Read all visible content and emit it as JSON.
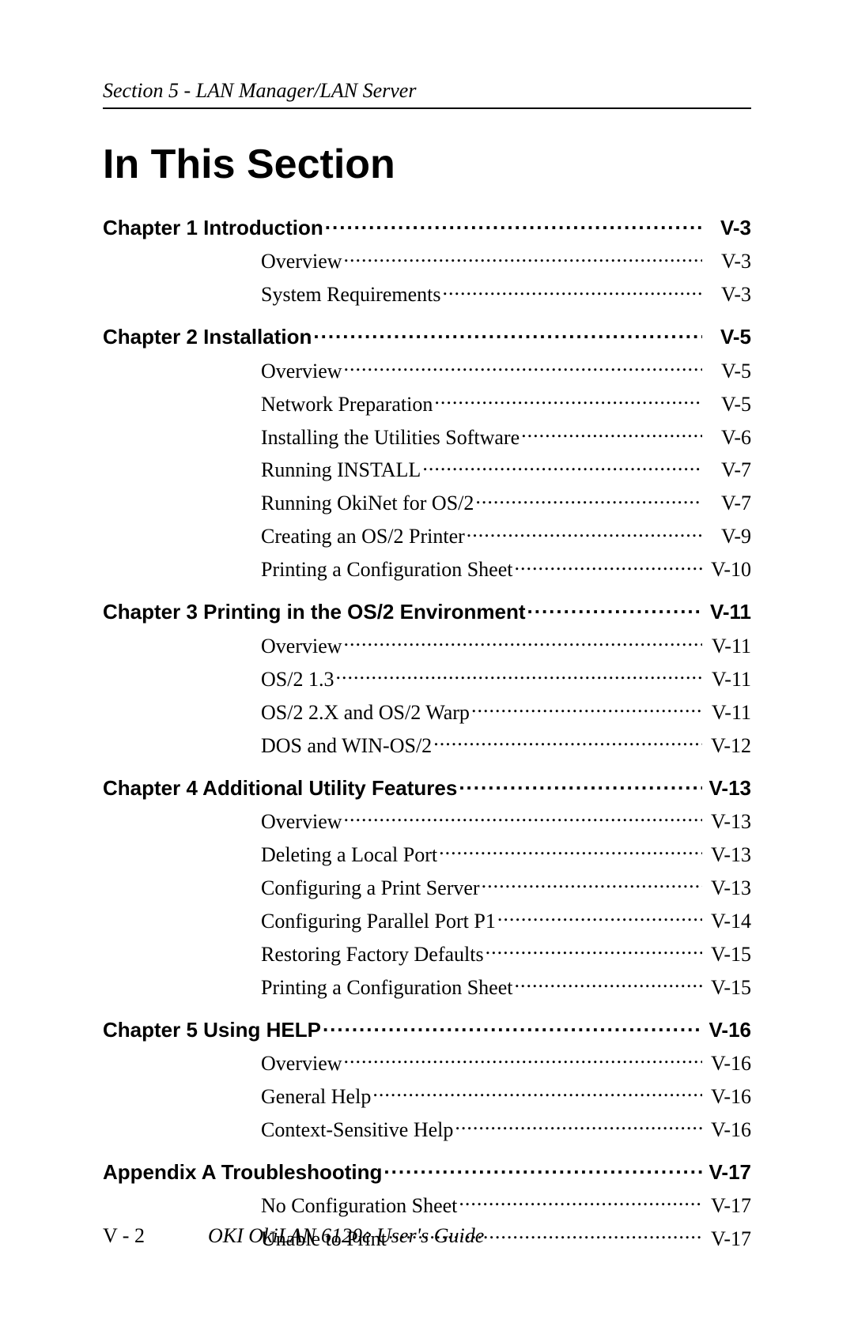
{
  "running_head": "Section 5 - LAN Manager/LAN Server",
  "title": "In This Section",
  "footer_page": "V - 2",
  "footer_guide": "OKI OkiLAN 6120e User's Guide",
  "chapters": [
    {
      "label": "Chapter 1 Introduction",
      "page": "V-3",
      "subs": [
        {
          "label": "Overview",
          "page": "V-3"
        },
        {
          "label": "System Requirements",
          "page": "V-3"
        }
      ]
    },
    {
      "label": "Chapter 2 Installation",
      "page": "V-5",
      "subs": [
        {
          "label": "Overview",
          "page": "V-5"
        },
        {
          "label": "Network Preparation",
          "page": "V-5"
        },
        {
          "label": "Installing the Utilities Software",
          "page": "V-6"
        },
        {
          "label": "Running INSTALL",
          "page": "V-7"
        },
        {
          "label": "Running OkiNet for OS/2",
          "page": "V-7"
        },
        {
          "label": "Creating an OS/2 Printer",
          "page": "V-9"
        },
        {
          "label": "Printing a Configuration Sheet",
          "page": "V-10"
        }
      ]
    },
    {
      "label": "Chapter 3 Printing in the OS/2 Environment",
      "page": "V-11",
      "subs": [
        {
          "label": "Overview",
          "page": "V-11"
        },
        {
          "label": "OS/2 1.3",
          "page": "V-11"
        },
        {
          "label": "OS/2 2.X and OS/2 Warp",
          "page": "V-11"
        },
        {
          "label": "DOS and WIN-OS/2",
          "page": "V-12"
        }
      ]
    },
    {
      "label": "Chapter 4 Additional Utility Features",
      "page": "V-13",
      "subs": [
        {
          "label": "Overview",
          "page": "V-13"
        },
        {
          "label": "Deleting a Local Port",
          "page": "V-13"
        },
        {
          "label": "Configuring a Print Server",
          "page": "V-13"
        },
        {
          "label": "Configuring Parallel Port P1",
          "page": "V-14"
        },
        {
          "label": "Restoring Factory Defaults",
          "page": "V-15"
        },
        {
          "label": "Printing a Configuration Sheet",
          "page": "V-15"
        }
      ]
    },
    {
      "label": "Chapter 5 Using HELP",
      "page": "V-16",
      "subs": [
        {
          "label": "Overview",
          "page": "V-16"
        },
        {
          "label": "General Help",
          "page": "V-16"
        },
        {
          "label": "Context-Sensitive Help",
          "page": "V-16"
        }
      ]
    },
    {
      "label": "Appendix A Troubleshooting",
      "page": "V-17",
      "subs": [
        {
          "label": "No Configuration Sheet",
          "page": "V-17"
        },
        {
          "label": "Unable to Print",
          "page": "V-17"
        }
      ]
    }
  ]
}
